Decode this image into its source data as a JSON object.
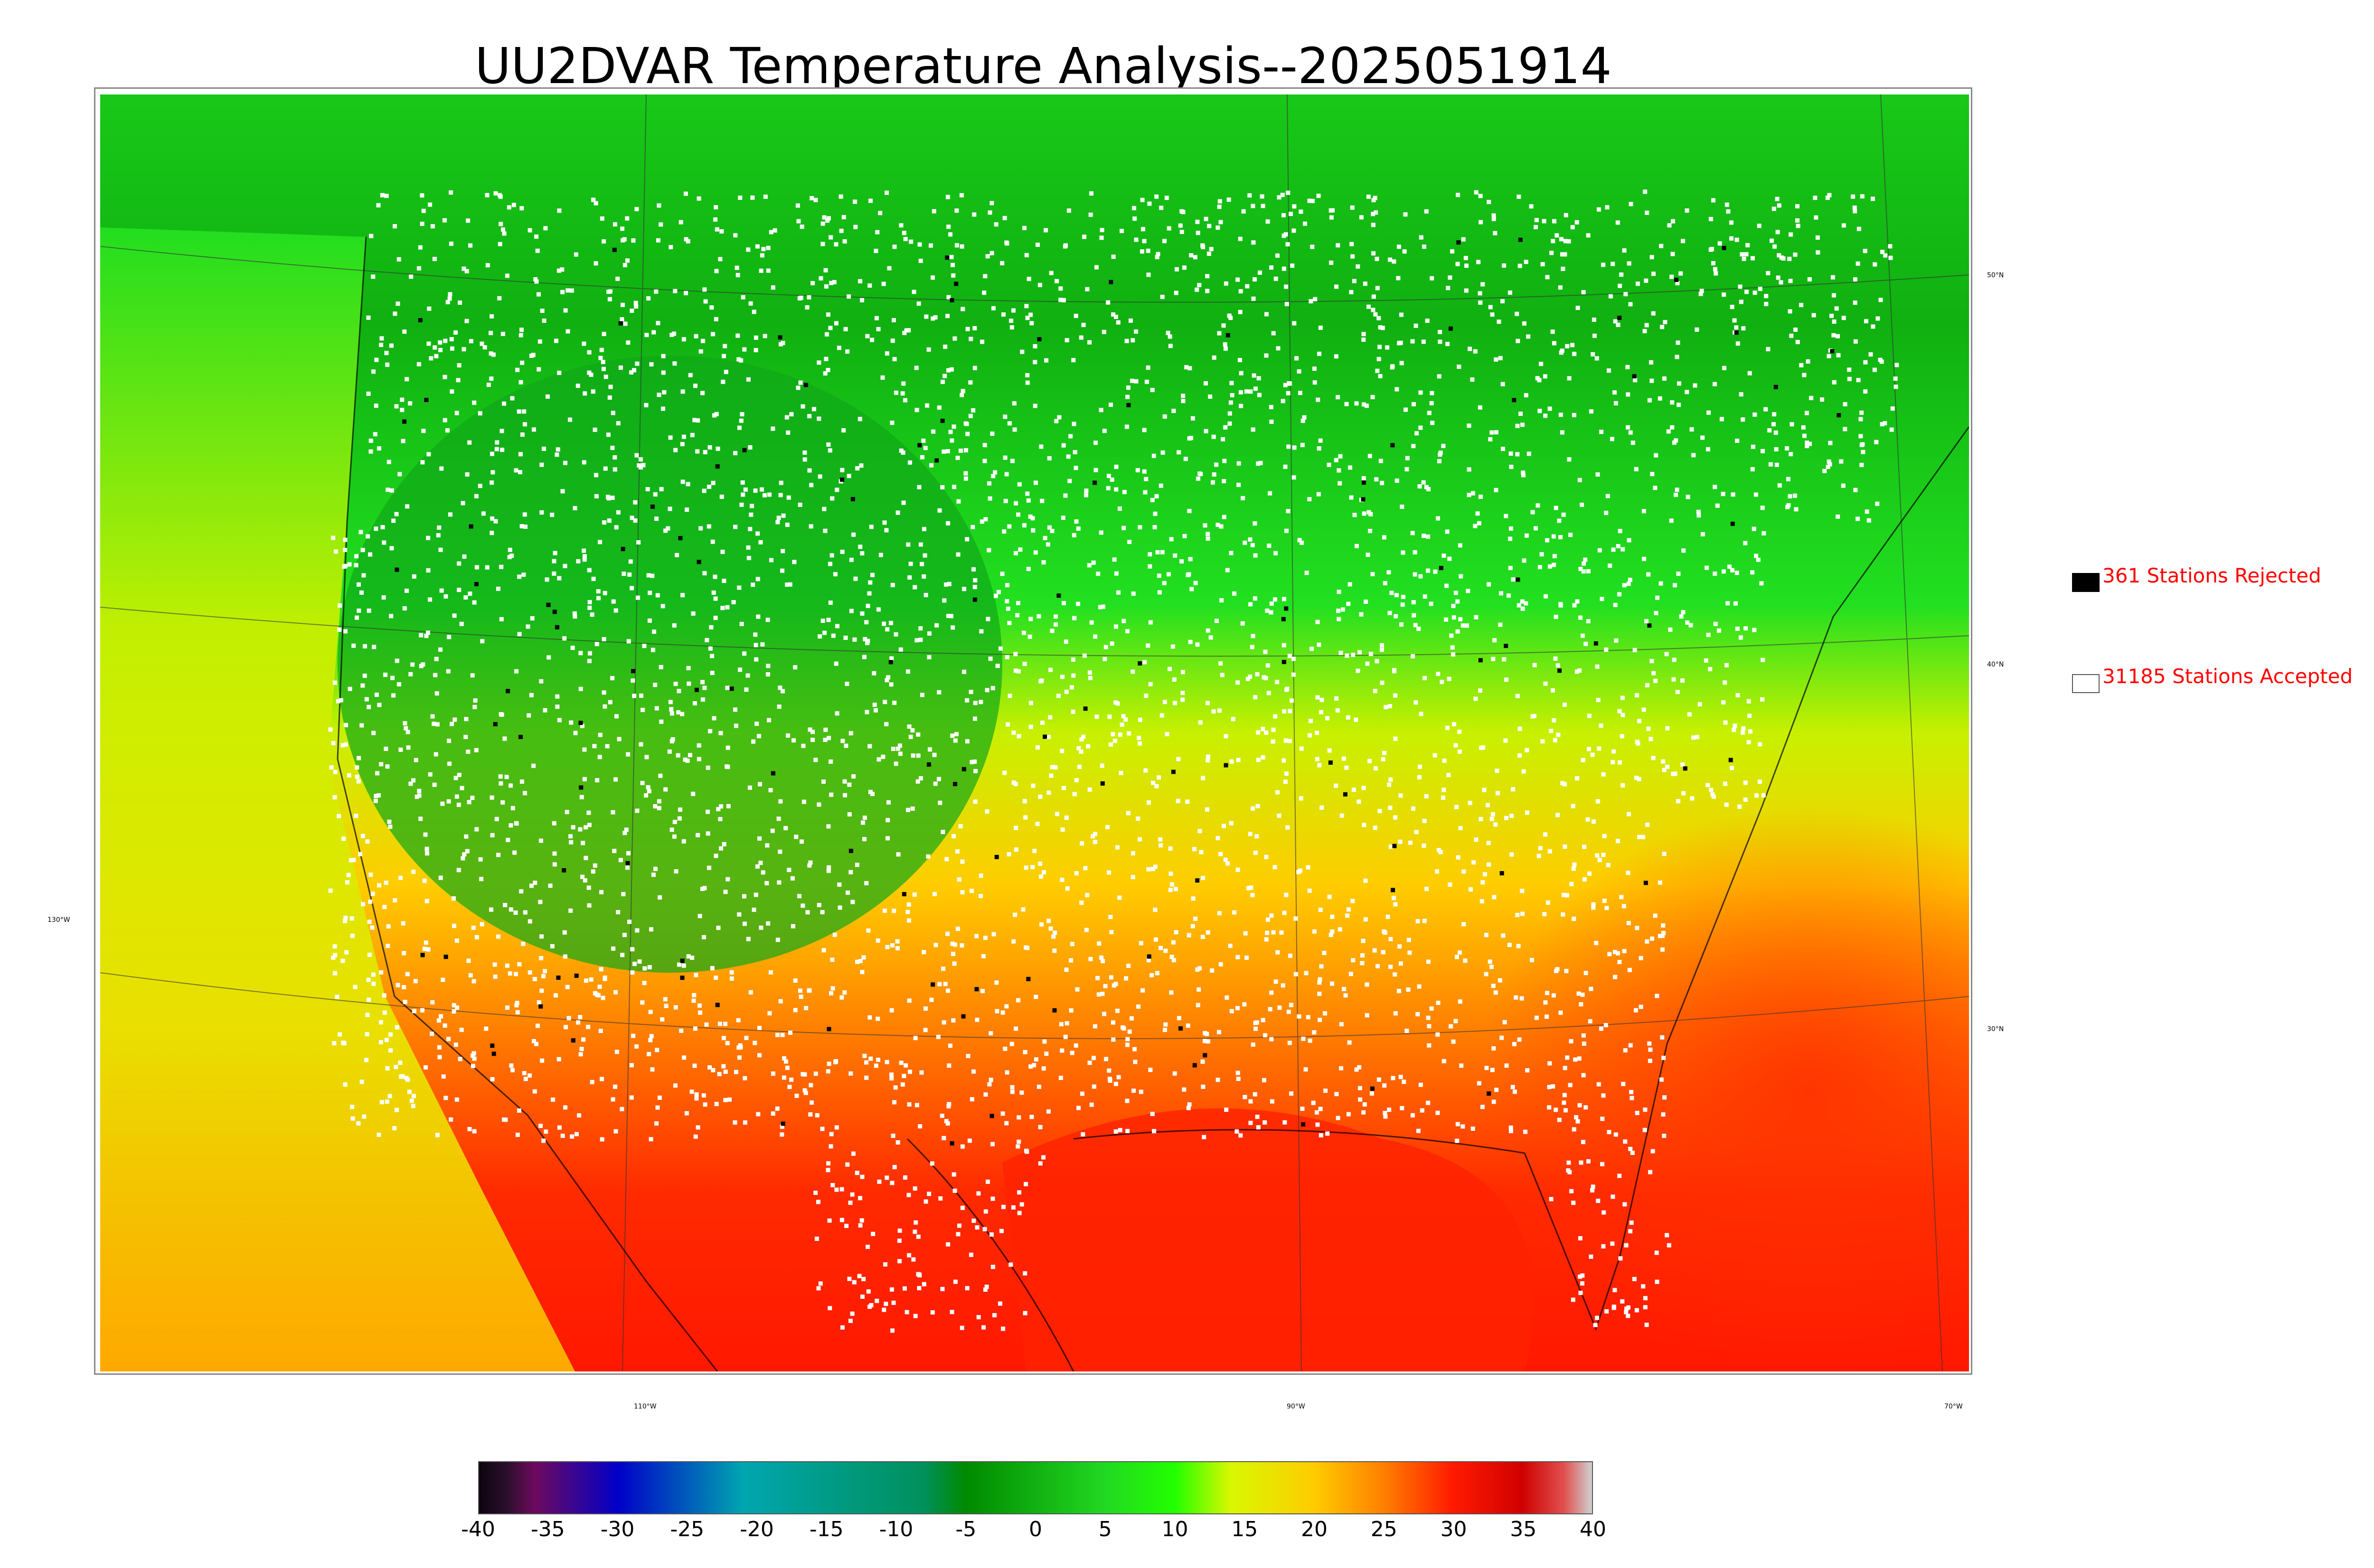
{
  "title": "UU2DVAR Temperature Analysis--2025051914",
  "coords": {
    "lat_50": "50°N",
    "lat_40": "40°N",
    "lat_30": "30°N",
    "lon_130": "130°W",
    "lon_110": "110°W",
    "lon_90": "90°W",
    "lon_70": "70°W"
  },
  "legend": {
    "rejected": {
      "label": "361 Stations Rejected",
      "color": "#000000"
    },
    "accepted": {
      "label": "31185 Stations Accepted",
      "color": "#ffffff"
    }
  },
  "colorbar": {
    "min": -40,
    "max": 40,
    "ticks": [
      "-40",
      "-35",
      "-30",
      "-25",
      "-20",
      "-15",
      "-10",
      "-5",
      "0",
      "5",
      "10",
      "15",
      "20",
      "25",
      "30",
      "35",
      "40"
    ],
    "stops": [
      {
        "value": -40,
        "color": "#0d0410"
      },
      {
        "value": -38,
        "color": "#2a0f2c"
      },
      {
        "value": -36,
        "color": "#6e0a5e"
      },
      {
        "value": -30,
        "color": "#0000c8"
      },
      {
        "value": -21,
        "color": "#00a6b0"
      },
      {
        "value": -8,
        "color": "#00905a"
      },
      {
        "value": -5,
        "color": "#008a00"
      },
      {
        "value": 5,
        "color": "#22d822"
      },
      {
        "value": 10,
        "color": "#22ff00"
      },
      {
        "value": 14,
        "color": "#d8f800"
      },
      {
        "value": 20,
        "color": "#ffcc00"
      },
      {
        "value": 25,
        "color": "#ff8000"
      },
      {
        "value": 30,
        "color": "#ff1a00"
      },
      {
        "value": 35,
        "color": "#d00000"
      },
      {
        "value": 38,
        "color": "#e05050"
      },
      {
        "value": 40,
        "color": "#d0d0d0"
      }
    ]
  }
}
